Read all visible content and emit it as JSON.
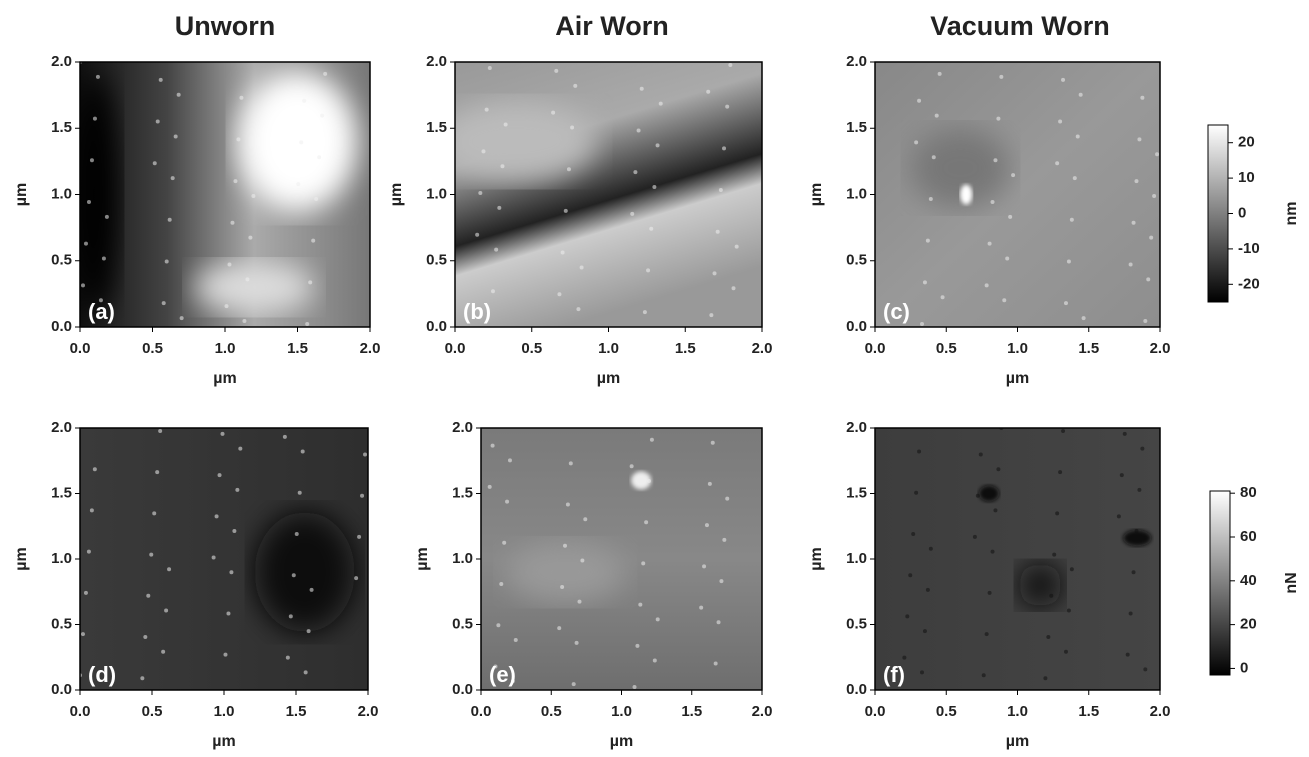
{
  "columns": [
    "Unworn",
    "Air Worn",
    "Vacuum Worn"
  ],
  "panels": [
    {
      "label": "(a)",
      "x_label": "µm",
      "y_label": "µm"
    },
    {
      "label": "(b)",
      "x_label": "µm",
      "y_label": "µm"
    },
    {
      "label": "(c)",
      "x_label": "µm",
      "y_label": "µm"
    },
    {
      "label": "(d)",
      "x_label": "µm",
      "y_label": "µm"
    },
    {
      "label": "(e)",
      "x_label": "µm",
      "y_label": "µm"
    },
    {
      "label": "(f)",
      "x_label": "µm",
      "y_label": "µm"
    }
  ],
  "axis": {
    "lim": [
      0,
      2
    ],
    "ticks": [
      {
        "value": 0,
        "label": "0.0"
      },
      0.5,
      {
        "value": 1,
        "label": "1.0"
      },
      1.5,
      {
        "value": 2,
        "label": "2.0"
      }
    ]
  },
  "colorbars": [
    {
      "unit": "nm",
      "lim": [
        -25,
        25
      ],
      "ticks": [
        20,
        10,
        0,
        -10,
        -20
      ]
    },
    {
      "unit": "nN",
      "lim": [
        -3,
        81
      ],
      "ticks": [
        80,
        60,
        40,
        20,
        0
      ]
    }
  ]
}
